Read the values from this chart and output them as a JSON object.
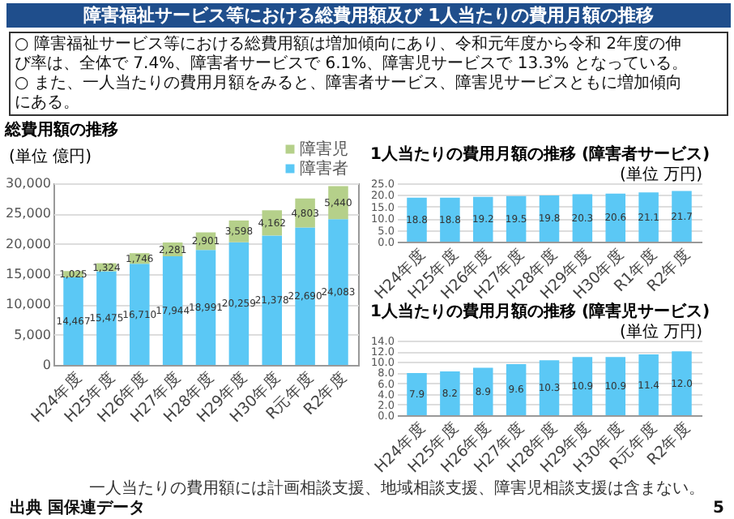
{
  "chart_data": [
    {
      "type": "other",
      "title": "障害福祉サービス等における総費用額及び 1人当たりの費用月額の推移",
      "annotations": [
        "○ 障害福祉サービス等における総費用額は増加傾向にあり、令和元年度から令和 2年度の伸び率は、全体で 7.4%、障害者サービスで 6.1%、障害児サービスで 13.3% となっている。",
        "○ また、一人当たりの費用月額をみると、障害者サービス、障害児サービスともに増加傾向にある。",
        "出典 国保連データ",
        "5"
      ]
    },
    {
      "type": "bar",
      "title": "総費用額の推移",
      "ylabel": "(単位 億円)",
      "categories": [
        "H24年度",
        "H25年度",
        "H26年度",
        "H27年度",
        "H28年度",
        "H29年度",
        "H30年度",
        "R元年度",
        "R2年度"
      ],
      "stacked": true,
      "legend": "top right",
      "grid": "y",
      "series": [
        {
          "name": "障害者",
          "color": "#5bc8f5",
          "values": [
            14467,
            15475,
            16710,
            17944,
            18991,
            20259,
            21378,
            22690,
            24083
          ],
          "value_labels": [
            "14,467",
            "15,475",
            "16,710",
            "17,944",
            "18,991",
            "20,259",
            "21,378",
            "22,690",
            "24,083"
          ]
        },
        {
          "name": "障害児",
          "color": "#b5d08a",
          "values": [
            1025,
            1324,
            1746,
            2281,
            2901,
            3598,
            4162,
            4803,
            5440
          ],
          "value_labels": [
            "1,025",
            "1,324",
            "1,746",
            "2,281",
            "2,901",
            "3,598",
            "4,162",
            "4,803",
            "5,440"
          ]
        }
      ],
      "ylim": [
        0,
        30000
      ],
      "yticks": [
        0,
        {
          "value": 5000,
          "label": "5,000"
        },
        {
          "value": 10000,
          "label": "10,000"
        },
        {
          "value": 15000,
          "label": "15,000"
        },
        {
          "value": 20000,
          "label": "20,000"
        },
        {
          "value": 25000,
          "label": "25,000"
        },
        {
          "value": 30000,
          "label": "30,000"
        }
      ]
    },
    {
      "type": "bar",
      "title": "1人当たりの費用月額の推移 (障害者サービス)",
      "ylabel": "(単位 万円)",
      "categories": [
        "H24年度",
        "H25年度",
        "H26年度",
        "H27年度",
        "H28年度",
        "H29年度",
        "H30年度",
        "R1年度",
        "R2年度"
      ],
      "color": "#5bc8f5",
      "data_labels": true,
      "grid": "y",
      "values": [
        18.8,
        18.8,
        19.2,
        19.5,
        19.8,
        20.3,
        20.6,
        21.1,
        21.7
      ],
      "ylim": [
        0,
        25
      ],
      "yticks": [
        {
          "value": 0,
          "label": "0.0"
        },
        {
          "value": 5,
          "label": "5.0"
        },
        {
          "value": 10,
          "label": "10.0"
        },
        {
          "value": 15,
          "label": "15.0"
        },
        {
          "value": 20,
          "label": "20.0"
        },
        {
          "value": 25,
          "label": "25.0"
        }
      ]
    },
    {
      "type": "bar",
      "title": "1人当たりの費用月額の推移 (障害児サービス)",
      "ylabel": "(単位 万円)",
      "categories": [
        "H24年度",
        "H25年度",
        "H26年度",
        "H27年度",
        "H28年度",
        "H29年度",
        "H30年度",
        "R元年度",
        "R2年度"
      ],
      "color": "#5bc8f5",
      "grid": "y",
      "values": [
        7.9,
        8.2,
        8.9,
        9.6,
        10.3,
        10.9,
        10.9,
        11.4,
        12.0
      ],
      "value_labels": [
        "7.9",
        "8.2",
        "8.9",
        "9.6",
        "10.3",
        "10.9",
        "10.9",
        "11.4",
        "12.0"
      ],
      "ylim": [
        0,
        14
      ],
      "yticks": [
        {
          "value": 0,
          "label": "0.0"
        },
        {
          "value": 2,
          "label": "2.0"
        },
        {
          "value": 4,
          "label": "4.0"
        },
        {
          "value": 6,
          "label": "6.0"
        },
        {
          "value": 8,
          "label": "8.0"
        },
        {
          "value": 10,
          "label": "10.0"
        },
        {
          "value": 12,
          "label": "12.0"
        },
        {
          "value": 14,
          "label": "14.0"
        }
      ],
      "annotations": [
        "一人当たりの費用額には計画相談支援、地域相談支援、障害児相談支援は含まない。"
      ]
    }
  ]
}
